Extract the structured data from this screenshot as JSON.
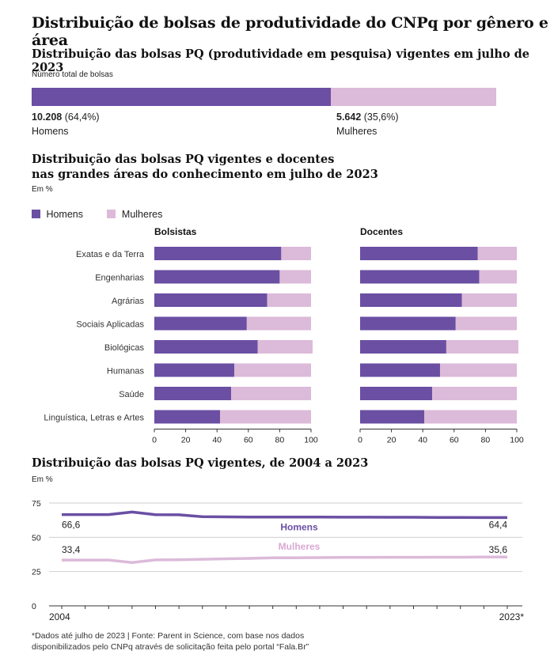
{
  "title": "Distribuição de bolsas de produtividade do CNPq por gênero e área",
  "colors": {
    "men": "#6a4fa3",
    "women": "#dcbad9",
    "axis": "#888888",
    "grid": "#e3e3e3",
    "women_text": "#d9a9d4"
  },
  "section1": {
    "title": "Distribuição das bolsas PQ (produtividade em pesquisa) vigentes em julho de 2023",
    "subtitle": "Número total de bolsas",
    "men": {
      "value": "10.208",
      "pct": "(64,4%)",
      "label": "Homens",
      "share": 64.4
    },
    "women": {
      "value": "5.642",
      "pct": "(35,6%)",
      "label": "Mulheres",
      "share": 35.6
    }
  },
  "section2": {
    "title_line1": "Distribuição das bolsas PQ vigentes e docentes",
    "title_line2": "nas grandes áreas do conhecimento em julho de 2023",
    "unit": "Em %",
    "legend": {
      "men": "Homens",
      "women": "Mulheres"
    },
    "panel_left": "Bolsistas",
    "panel_right": "Docentes"
  },
  "section3": {
    "title": "Distribuição das bolsas PQ vigentes, de 2004 a 2023",
    "unit": "Em %",
    "start_men": "66,6",
    "start_women": "33,4",
    "end_men": "64,4",
    "end_women": "35,6",
    "label_men": "Homens",
    "label_women": "Mulheres"
  },
  "chart_data": [
    {
      "type": "bar",
      "title": "Bolsistas",
      "orientation": "horizontal",
      "stacked": true,
      "categories": [
        "Exatas e da Terra",
        "Engenharias",
        "Agrárias",
        "Sociais Aplicadas",
        "Biológicas",
        "Humanas",
        "Saúde",
        "Linguística, Letras e Artes"
      ],
      "series": [
        {
          "name": "Homens",
          "values": [
            81,
            80,
            72,
            59,
            66,
            51,
            49,
            42
          ]
        },
        {
          "name": "Mulheres",
          "values": [
            19,
            20,
            28,
            41,
            35,
            49,
            51,
            58
          ]
        }
      ],
      "xlim": [
        0,
        100
      ],
      "xticks": [
        "0",
        "20",
        "40",
        "60",
        "80",
        "100"
      ]
    },
    {
      "type": "bar",
      "title": "Docentes",
      "orientation": "horizontal",
      "stacked": true,
      "categories": [
        "Exatas e da Terra",
        "Engenharias",
        "Agrárias",
        "Sociais Aplicadas",
        "Biológicas",
        "Humanas",
        "Saúde",
        "Linguística, Letras e Artes"
      ],
      "series": [
        {
          "name": "Homens",
          "values": [
            75,
            76,
            65,
            61,
            55,
            51,
            46,
            41
          ]
        },
        {
          "name": "Mulheres",
          "values": [
            25,
            24,
            35,
            39,
            46,
            49,
            54,
            59
          ]
        }
      ],
      "xlim": [
        0,
        100
      ],
      "xticks": [
        "0",
        "20",
        "40",
        "60",
        "80",
        "100"
      ]
    },
    {
      "type": "line",
      "title": "Distribuição das bolsas PQ vigentes, de 2004 a 2023",
      "x": [
        2004,
        2005,
        2006,
        2007,
        2008,
        2009,
        2010,
        2011,
        2012,
        2013,
        2014,
        2015,
        2016,
        2017,
        2018,
        2019,
        2020,
        2021,
        2022,
        2023
      ],
      "series": [
        {
          "name": "Homens",
          "values": [
            66.6,
            66.6,
            66.6,
            68.4,
            66.5,
            66.4,
            65.0,
            64.9,
            64.8,
            64.8,
            64.8,
            64.8,
            64.7,
            64.7,
            64.6,
            64.6,
            64.5,
            64.5,
            64.4,
            64.4
          ]
        },
        {
          "name": "Mulheres",
          "values": [
            33.4,
            33.4,
            33.4,
            31.6,
            33.5,
            33.6,
            34.0,
            34.3,
            34.6,
            35.0,
            35.1,
            35.2,
            35.3,
            35.3,
            35.4,
            35.4,
            35.5,
            35.5,
            35.6,
            35.6
          ]
        }
      ],
      "ylim": [
        0,
        75
      ],
      "yticks": [
        "0",
        "25",
        "50",
        "75"
      ],
      "xtick_labels": [
        "2004",
        "2023*"
      ],
      "ylabel": "Em %"
    }
  ],
  "footnote_line1": "*Dados até julho de 2023 | Fonte: Parent in Science, com base nos dados",
  "footnote_line2": "disponibilizados pelo CNPq através de solicitação feita pelo portal “Fala.Br”"
}
